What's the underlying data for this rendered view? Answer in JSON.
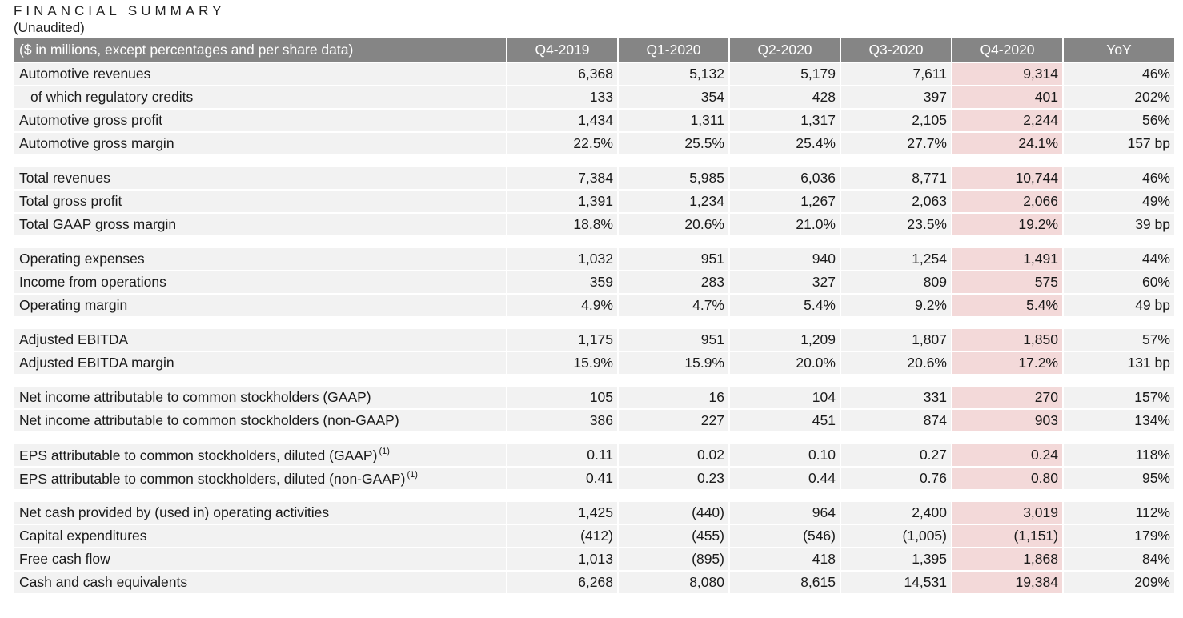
{
  "title": "FINANCIAL SUMMARY",
  "subtitle": "(Unaudited)",
  "table": {
    "header": [
      "($ in millions, except percentages and per share data)",
      "Q4-2019",
      "Q1-2020",
      "Q2-2020",
      "Q3-2020",
      "Q4-2020",
      "YoY"
    ],
    "highlight_color": "#f3d9d9",
    "header_color": "#858585",
    "groups": [
      [
        {
          "label": "Automotive revenues",
          "values": [
            "6,368",
            "5,132",
            "5,179",
            "7,611",
            "9,314",
            "46%"
          ]
        },
        {
          "label": "of which regulatory credits",
          "indent": true,
          "values": [
            "133",
            "354",
            "428",
            "397",
            "401",
            "202%"
          ]
        },
        {
          "label": "Automotive gross profit",
          "values": [
            "1,434",
            "1,311",
            "1,317",
            "2,105",
            "2,244",
            "56%"
          ]
        },
        {
          "label": "Automotive gross margin",
          "values": [
            "22.5%",
            "25.5%",
            "25.4%",
            "27.7%",
            "24.1%",
            "157 bp"
          ]
        }
      ],
      [
        {
          "label": "Total revenues",
          "values": [
            "7,384",
            "5,985",
            "6,036",
            "8,771",
            "10,744",
            "46%"
          ]
        },
        {
          "label": "Total gross profit",
          "values": [
            "1,391",
            "1,234",
            "1,267",
            "2,063",
            "2,066",
            "49%"
          ]
        },
        {
          "label": "Total GAAP gross margin",
          "values": [
            "18.8%",
            "20.6%",
            "21.0%",
            "23.5%",
            "19.2%",
            "39 bp"
          ]
        }
      ],
      [
        {
          "label": "Operating expenses",
          "values": [
            "1,032",
            "951",
            "940",
            "1,254",
            "1,491",
            "44%"
          ]
        },
        {
          "label": "Income from operations",
          "values": [
            "359",
            "283",
            "327",
            "809",
            "575",
            "60%"
          ]
        },
        {
          "label": "Operating margin",
          "values": [
            "4.9%",
            "4.7%",
            "5.4%",
            "9.2%",
            "5.4%",
            "49 bp"
          ]
        }
      ],
      [
        {
          "label": "Adjusted EBITDA",
          "values": [
            "1,175",
            "951",
            "1,209",
            "1,807",
            "1,850",
            "57%"
          ]
        },
        {
          "label": "Adjusted EBITDA margin",
          "values": [
            "15.9%",
            "15.9%",
            "20.0%",
            "20.6%",
            "17.2%",
            "131 bp"
          ]
        }
      ],
      [
        {
          "label": "Net income attributable to common stockholders (GAAP)",
          "values": [
            "105",
            "16",
            "104",
            "331",
            "270",
            "157%"
          ]
        },
        {
          "label": "Net income attributable to common stockholders (non-GAAP)",
          "values": [
            "386",
            "227",
            "451",
            "874",
            "903",
            "134%"
          ]
        }
      ],
      [
        {
          "label": "EPS attributable to common stockholders, diluted (GAAP)",
          "sup": "(1)",
          "values": [
            "0.11",
            "0.02",
            "0.10",
            "0.27",
            "0.24",
            "118%"
          ]
        },
        {
          "label": "EPS attributable to common stockholders, diluted (non-GAAP)",
          "sup": "(1)",
          "values": [
            "0.41",
            "0.23",
            "0.44",
            "0.76",
            "0.80",
            "95%"
          ]
        }
      ],
      [
        {
          "label": "Net cash provided by (used in) operating activities",
          "values": [
            "1,425",
            "(440)",
            "964",
            "2,400",
            "3,019",
            "112%"
          ]
        },
        {
          "label": "Capital expenditures",
          "values": [
            "(412)",
            "(455)",
            "(546)",
            "(1,005)",
            "(1,151)",
            "179%"
          ]
        },
        {
          "label": "Free cash flow",
          "values": [
            "1,013",
            "(895)",
            "418",
            "1,395",
            "1,868",
            "84%"
          ]
        },
        {
          "label": "Cash and cash equivalents",
          "values": [
            "6,268",
            "8,080",
            "8,615",
            "14,531",
            "19,384",
            "209%"
          ]
        }
      ]
    ]
  }
}
